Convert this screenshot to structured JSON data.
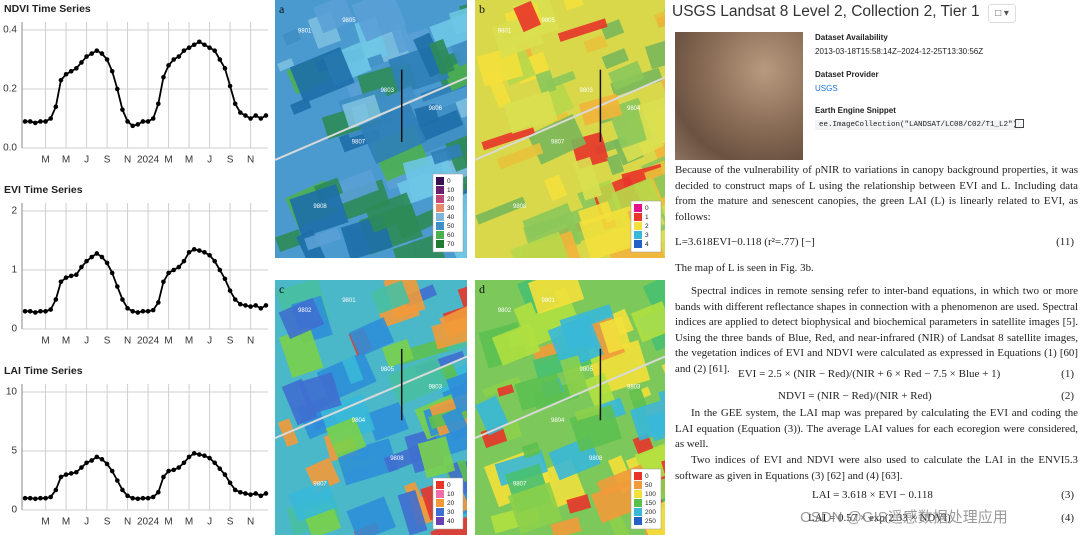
{
  "chart_data": [
    {
      "type": "line",
      "title": "NDVI Time Series",
      "color": "#000000",
      "grid": true,
      "x": [
        0,
        0.5,
        1,
        1.5,
        2,
        2.5,
        3,
        3.5,
        4,
        4.5,
        5,
        5.5,
        6,
        6.5,
        7,
        7.5,
        8,
        8.5,
        9,
        9.5,
        10,
        10.5,
        11,
        11.5,
        12,
        12.5,
        13,
        13.5,
        14,
        14.5,
        15,
        15.5,
        16,
        16.5,
        17,
        17.5,
        18,
        18.5,
        19,
        19.5,
        20,
        20.5,
        21,
        21.5,
        22,
        22.5,
        23,
        23.5
      ],
      "values": [
        0.09,
        0.09,
        0.085,
        0.09,
        0.09,
        0.1,
        0.14,
        0.23,
        0.25,
        0.26,
        0.27,
        0.29,
        0.31,
        0.32,
        0.33,
        0.32,
        0.3,
        0.26,
        0.2,
        0.13,
        0.09,
        0.075,
        0.08,
        0.09,
        0.09,
        0.1,
        0.15,
        0.24,
        0.28,
        0.3,
        0.31,
        0.33,
        0.34,
        0.35,
        0.36,
        0.35,
        0.34,
        0.33,
        0.3,
        0.27,
        0.21,
        0.15,
        0.12,
        0.11,
        0.1,
        0.11,
        0.1,
        0.11
      ],
      "xlim": [
        -0.3,
        23.7
      ],
      "xticks": [
        {
          "value": 2,
          "label": "M"
        },
        {
          "value": 4,
          "label": "M"
        },
        {
          "value": 6,
          "label": "J"
        },
        {
          "value": 8,
          "label": "S"
        },
        {
          "value": 10,
          "label": "N"
        },
        {
          "value": 12,
          "label": "2024"
        },
        {
          "value": 14,
          "label": "M"
        },
        {
          "value": 16,
          "label": "M"
        },
        {
          "value": 18,
          "label": "J"
        },
        {
          "value": 20,
          "label": "S"
        },
        {
          "value": 22,
          "label": "N"
        }
      ],
      "ylim": [
        0,
        0.4
      ],
      "yticks": [
        {
          "value": 0,
          "label": "0.0"
        },
        0.2,
        0.4
      ]
    },
    {
      "type": "line",
      "title": "EVI Time Series",
      "color": "#000000",
      "grid": true,
      "x": [
        0,
        0.5,
        1,
        1.5,
        2,
        2.5,
        3,
        3.5,
        4,
        4.5,
        5,
        5.5,
        6,
        6.5,
        7,
        7.5,
        8,
        8.5,
        9,
        9.5,
        10,
        10.5,
        11,
        11.5,
        12,
        12.5,
        13,
        13.5,
        14,
        14.5,
        15,
        15.5,
        16,
        16.5,
        17,
        17.5,
        18,
        18.5,
        19,
        19.5,
        20,
        20.5,
        21,
        21.5,
        22,
        22.5,
        23,
        23.5
      ],
      "values": [
        0.3,
        0.3,
        0.28,
        0.3,
        0.3,
        0.33,
        0.5,
        0.8,
        0.87,
        0.9,
        0.92,
        1.05,
        1.15,
        1.22,
        1.28,
        1.22,
        1.12,
        0.95,
        0.72,
        0.5,
        0.35,
        0.3,
        0.28,
        0.3,
        0.3,
        0.32,
        0.45,
        0.8,
        0.95,
        1.0,
        1.05,
        1.15,
        1.3,
        1.35,
        1.33,
        1.3,
        1.25,
        1.15,
        1.0,
        0.85,
        0.65,
        0.5,
        0.42,
        0.4,
        0.38,
        0.4,
        0.35,
        0.4
      ],
      "xlim": [
        -0.3,
        23.7
      ],
      "xticks": [
        {
          "value": 2,
          "label": "M"
        },
        {
          "value": 4,
          "label": "M"
        },
        {
          "value": 6,
          "label": "J"
        },
        {
          "value": 8,
          "label": "S"
        },
        {
          "value": 10,
          "label": "N"
        },
        {
          "value": 12,
          "label": "2024"
        },
        {
          "value": 14,
          "label": "M"
        },
        {
          "value": 16,
          "label": "M"
        },
        {
          "value": 18,
          "label": "J"
        },
        {
          "value": 20,
          "label": "S"
        },
        {
          "value": 22,
          "label": "N"
        }
      ],
      "ylim": [
        0,
        2
      ],
      "yticks": [
        0,
        1,
        2
      ]
    },
    {
      "type": "line",
      "title": "LAI Time Series",
      "color": "#000000",
      "grid": true,
      "x": [
        0,
        0.5,
        1,
        1.5,
        2,
        2.5,
        3,
        3.5,
        4,
        4.5,
        5,
        5.5,
        6,
        6.5,
        7,
        7.5,
        8,
        8.5,
        9,
        9.5,
        10,
        10.5,
        11,
        11.5,
        12,
        12.5,
        13,
        13.5,
        14,
        14.5,
        15,
        15.5,
        16,
        16.5,
        17,
        17.5,
        18,
        18.5,
        19,
        19.5,
        20,
        20.5,
        21,
        21.5,
        22,
        22.5,
        23,
        23.5
      ],
      "values": [
        1.0,
        1.0,
        0.95,
        1.0,
        1.0,
        1.1,
        1.7,
        2.8,
        3.0,
        3.1,
        3.2,
        3.6,
        4.0,
        4.2,
        4.5,
        4.3,
        3.9,
        3.3,
        2.5,
        1.7,
        1.2,
        1.0,
        0.95,
        1.0,
        1.0,
        1.1,
        1.5,
        2.8,
        3.3,
        3.4,
        3.6,
        4.0,
        4.5,
        4.8,
        4.7,
        4.6,
        4.4,
        4.0,
        3.5,
        3.0,
        2.3,
        1.7,
        1.5,
        1.4,
        1.3,
        1.4,
        1.2,
        1.4
      ],
      "xlim": [
        -0.3,
        23.7
      ],
      "xticks": [
        {
          "value": 2,
          "label": "M"
        },
        {
          "value": 4,
          "label": "M"
        },
        {
          "value": 6,
          "label": "J"
        },
        {
          "value": 8,
          "label": "S"
        },
        {
          "value": 10,
          "label": "N"
        },
        {
          "value": 12,
          "label": "2024"
        },
        {
          "value": 14,
          "label": "M"
        },
        {
          "value": 16,
          "label": "M"
        },
        {
          "value": 18,
          "label": "J"
        },
        {
          "value": 20,
          "label": "S"
        },
        {
          "value": 22,
          "label": "N"
        }
      ],
      "ylim": [
        0,
        10
      ],
      "yticks": [
        0,
        5,
        10
      ]
    }
  ],
  "maps": [
    {
      "letter": "a",
      "fields": [
        "9801",
        "9805",
        "9803",
        "9806",
        "9807",
        "9808"
      ],
      "legend": {
        "labels": [
          "0",
          "10",
          "20",
          "30",
          "40",
          "50",
          "60",
          "70"
        ],
        "colors": [
          "#3b0f4f",
          "#6a1f6e",
          "#c04a7a",
          "#e58a6a",
          "#7fb6d8",
          "#3f8fc4",
          "#4caf50",
          "#1e7d32"
        ]
      }
    },
    {
      "letter": "b",
      "fields": [
        "9801",
        "9805",
        "9803",
        "9804",
        "9807",
        "9808"
      ],
      "legend": {
        "labels": [
          "0",
          "1",
          "2",
          "3",
          "4"
        ],
        "colors": [
          "#e0118a",
          "#e8352a",
          "#f3e03b",
          "#38b8d8",
          "#2560c8"
        ]
      }
    },
    {
      "letter": "c",
      "fields": [
        "9802",
        "9801",
        "9805",
        "9803",
        "9804",
        "9807",
        "9808"
      ],
      "legend": {
        "labels": [
          "0",
          "10",
          "20",
          "30",
          "40"
        ],
        "colors": [
          "#e8352a",
          "#ef6da8",
          "#f29a3a",
          "#3f6fd0",
          "#6a3fb0"
        ]
      }
    },
    {
      "letter": "d",
      "fields": [
        "9802",
        "9801",
        "9805",
        "9803",
        "9804",
        "9807",
        "9808"
      ],
      "legend": {
        "labels": [
          "0",
          "50",
          "100",
          "150",
          "200",
          "250"
        ],
        "colors": [
          "#e8352a",
          "#f29a3a",
          "#f3e03b",
          "#5cc050",
          "#38b8d8",
          "#2560c8"
        ]
      }
    }
  ],
  "document": {
    "title": "USGS Landsat 8 Level 2, Collection 2, Tier 1",
    "availability_label": "Dataset Availability",
    "availability": "2013-03-18T15:58:14Z–2024-12-25T13:30:56Z",
    "provider_label": "Dataset Provider",
    "provider": "USGS",
    "snippet_label": "Earth Engine Snippet",
    "snippet": "ee.ImageCollection(\"LANDSAT/LC08/C02/T1_L2\")",
    "p1": "Because of the vulnerability of ρNIR to variations in canopy background properties, it was decided to construct maps of L using the relationship between EVI and L. Including data from the mature and senescent canopies, the green LAI (L) is linearly related to EVI, as follows:",
    "eq11": "L=3.618EVI−0.118 (r²=.77) [−]",
    "eq11_no": "(11)",
    "p2": "The map of L is seen in Fig. 3b.",
    "p3": "Spectral indices in remote sensing refer to inter-band equations, in which two or more bands with different reflectance shapes in connection with a phenomenon are used. Spectral indices are applied to detect biophysical and biochemical parameters in satellite images [5]. Using the three bands of Blue, Red, and near-infrared (NIR) of Landsat 8 satellite images, the vegetation indices of EVI and NDVI were calculated as expressed in Equations (1) [60] and (2) [61].",
    "eq1": "EVI = 2.5 × (NIR − Red)/(NIR + 6 × Red − 7.5 × Blue + 1)",
    "eq1_no": "(1)",
    "eq2": "NDVI = (NIR − Red)/(NIR + Red)",
    "eq2_no": "(2)",
    "p4": "In the GEE system, the LAI map was prepared by calculating the EVI and coding the LAI equation (Equation (3)). The average LAI values for each ecoregion were considered, as well.",
    "p5": "Two indices of EVI and NDVI were also used to calculate the LAI in the ENVI5.3 software as given in Equations (3) [62] and (4) [63].",
    "eq3": "LAI = 3.618 × EVI − 0.118",
    "eq3_no": "(3)",
    "eq4": "LAI = 0.57 × exp(2.33 × NDVI)",
    "eq4_no": "(4)",
    "watermark": "CSDN @GIS遥感数据处理应用"
  }
}
